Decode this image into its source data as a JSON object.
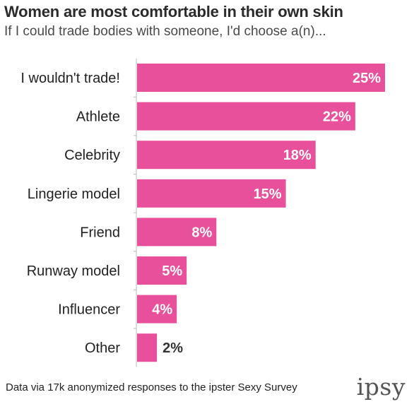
{
  "chart_data": {
    "type": "bar",
    "orientation": "horizontal",
    "title": "Women are most comfortable in their own skin",
    "subtitle": "If I could trade bodies with someone, I'd choose a(n)...",
    "categories": [
      "I wouldn't trade!",
      "Athlete",
      "Celebrity",
      "Lingerie model",
      "Friend",
      "Runway model",
      "Influencer",
      "Other"
    ],
    "values": [
      25,
      22,
      18,
      15,
      8,
      5,
      4,
      2
    ],
    "value_labels": [
      "25%",
      "22%",
      "18%",
      "15%",
      "8%",
      "5%",
      "4%",
      "2%"
    ],
    "xlim": [
      0,
      25
    ],
    "bar_color": "#e8509c",
    "label_inside_color": "#ffffff",
    "label_outside_color": "#333333",
    "grid": false,
    "footer": "Data via 17k anonymized responses to the ipster Sexy Survey",
    "brand": "ipsy"
  }
}
